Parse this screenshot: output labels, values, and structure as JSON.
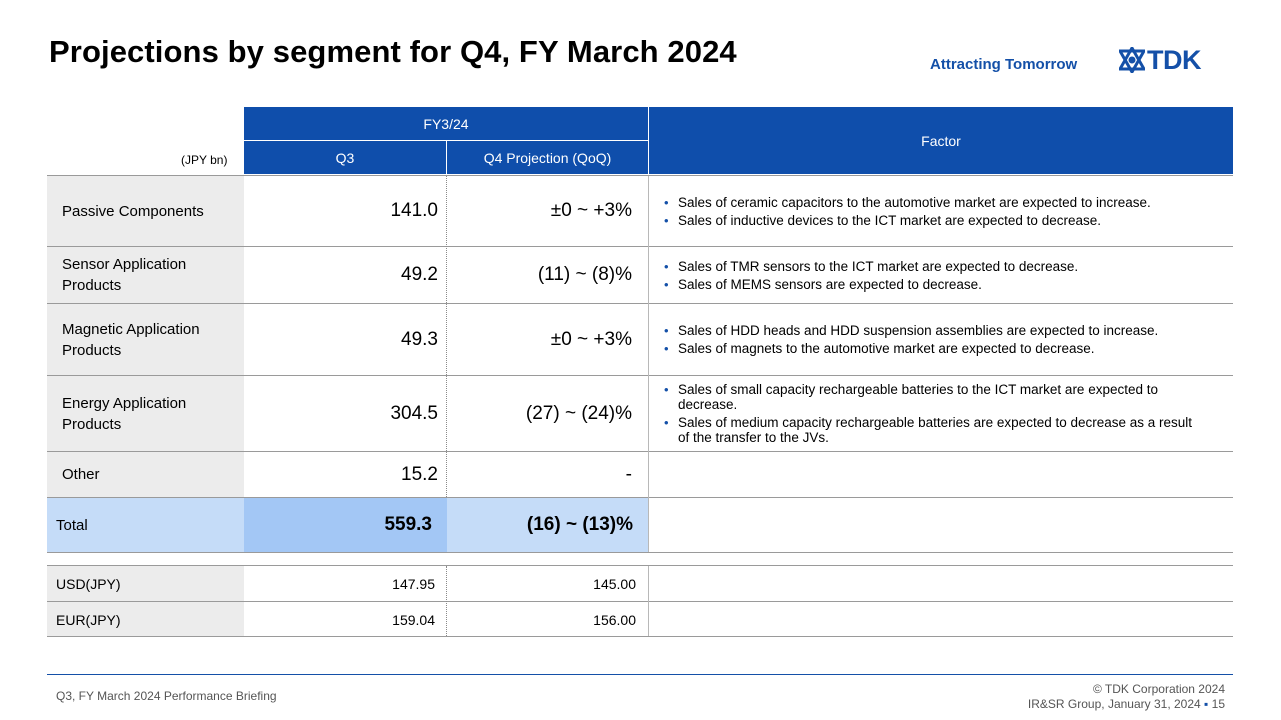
{
  "header": {
    "title": "Projections by segment for Q4, FY March 2024",
    "tagline": "Attracting Tomorrow",
    "logo_text": "TDK",
    "brand_color": "#1450a8"
  },
  "table": {
    "unit_label": "(JPY bn)",
    "period_header": "FY3/24",
    "col_q3": "Q3",
    "col_q4": "Q4 Projection (QoQ)",
    "col_factor": "Factor",
    "rows": [
      {
        "segment": "Passive  Components",
        "q3": "141.0",
        "q4": "±0 ~ +3%",
        "factors": [
          "Sales of ceramic capacitors to the automotive market are expected to increase.",
          "Sales of inductive devices to the ICT market are expected to decrease."
        ]
      },
      {
        "segment": "Sensor  Application Products",
        "q3": "49.2",
        "q4": "(11) ~ (8)%",
        "factors": [
          "Sales of TMR sensors to the ICT market are expected to decrease.",
          "Sales of MEMS sensors are expected to decrease."
        ]
      },
      {
        "segment": "Magnetic  Application Products",
        "q3": "49.3",
        "q4": "±0 ~ +3%",
        "factors": [
          "Sales of HDD heads and HDD suspension assemblies are expected to increase.",
          "Sales of magnets to the automotive market are expected to decrease."
        ]
      },
      {
        "segment": "Energy Application Products",
        "q3": "304.5",
        "q4": "(27) ~ (24)%",
        "factors": [
          "Sales of small capacity rechargeable batteries to the ICT market are expected to decrease.",
          "Sales of medium capacity rechargeable batteries are expected to decrease as a result of the transfer to the JVs."
        ]
      },
      {
        "segment": "Other",
        "q3": "15.2",
        "q4": "-",
        "factors": []
      }
    ],
    "total": {
      "label": "Total",
      "q3": "559.3",
      "q4": "(16) ~ (13)%"
    }
  },
  "fx": [
    {
      "label": "USD(JPY)",
      "q3": "147.95",
      "q4": "145.00"
    },
    {
      "label": "EUR(JPY)",
      "q3": "159.04",
      "q4": "156.00"
    }
  ],
  "footer": {
    "left": "Q3, FY March 2024 Performance  Briefing",
    "copyright": "© TDK Corporation 2024",
    "group": "IR&SR Group, January 31, 2024",
    "separator": "▪",
    "page": "15"
  }
}
